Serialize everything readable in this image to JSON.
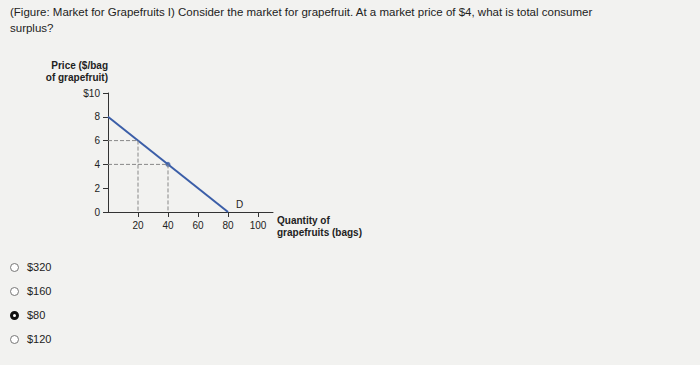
{
  "question": "(Figure: Market for Grapefruits I) Consider the market for grapefruit. At a market price of $4, what is total consumer surplus?",
  "options": [
    "$320",
    "$160",
    "$80",
    "$120"
  ],
  "selected": "$80",
  "chart_data": {
    "type": "line",
    "x_label": "Quantity of\ngrapefruits (bags)",
    "y_label": "Price ($/bag\nof grapefruit)",
    "series": [
      {
        "name": "D",
        "color": "#3b5ea8",
        "x": [
          0,
          80
        ],
        "values": [
          8,
          0
        ]
      }
    ],
    "points": {
      "x": [
        40
      ],
      "y": [
        4
      ]
    },
    "guides": {
      "x": [
        20,
        40
      ],
      "y": [
        6,
        4
      ]
    },
    "xlim": [
      0,
      110
    ],
    "xticks": [
      20,
      40,
      60,
      80,
      100
    ],
    "ylim": [
      0,
      10
    ],
    "yticks": [
      0,
      2,
      4,
      6,
      8,
      {
        "value": 10,
        "label": "$10"
      }
    ],
    "grid": false
  }
}
